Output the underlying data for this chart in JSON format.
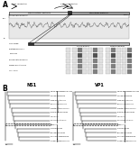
{
  "bg_color": "#ffffff",
  "panel_A_label": "A",
  "panel_B_label": "B",
  "ns1_tree_title": "NS1",
  "vp1_tree_title": "VP1",
  "text_color": "#000000",
  "tree_line_color": "#000000",
  "genome_left_color": "#d8d8d8",
  "genome_right_color": "#a0a0a0",
  "genome_dark_color": "#303030",
  "sw_bg_color": "#e8e8e8",
  "sw_line_color": "#505050",
  "vp1_bar_color": "#c0c0c0",
  "table_dark_color": "#808080",
  "table_light_color": "#e0e0e0"
}
